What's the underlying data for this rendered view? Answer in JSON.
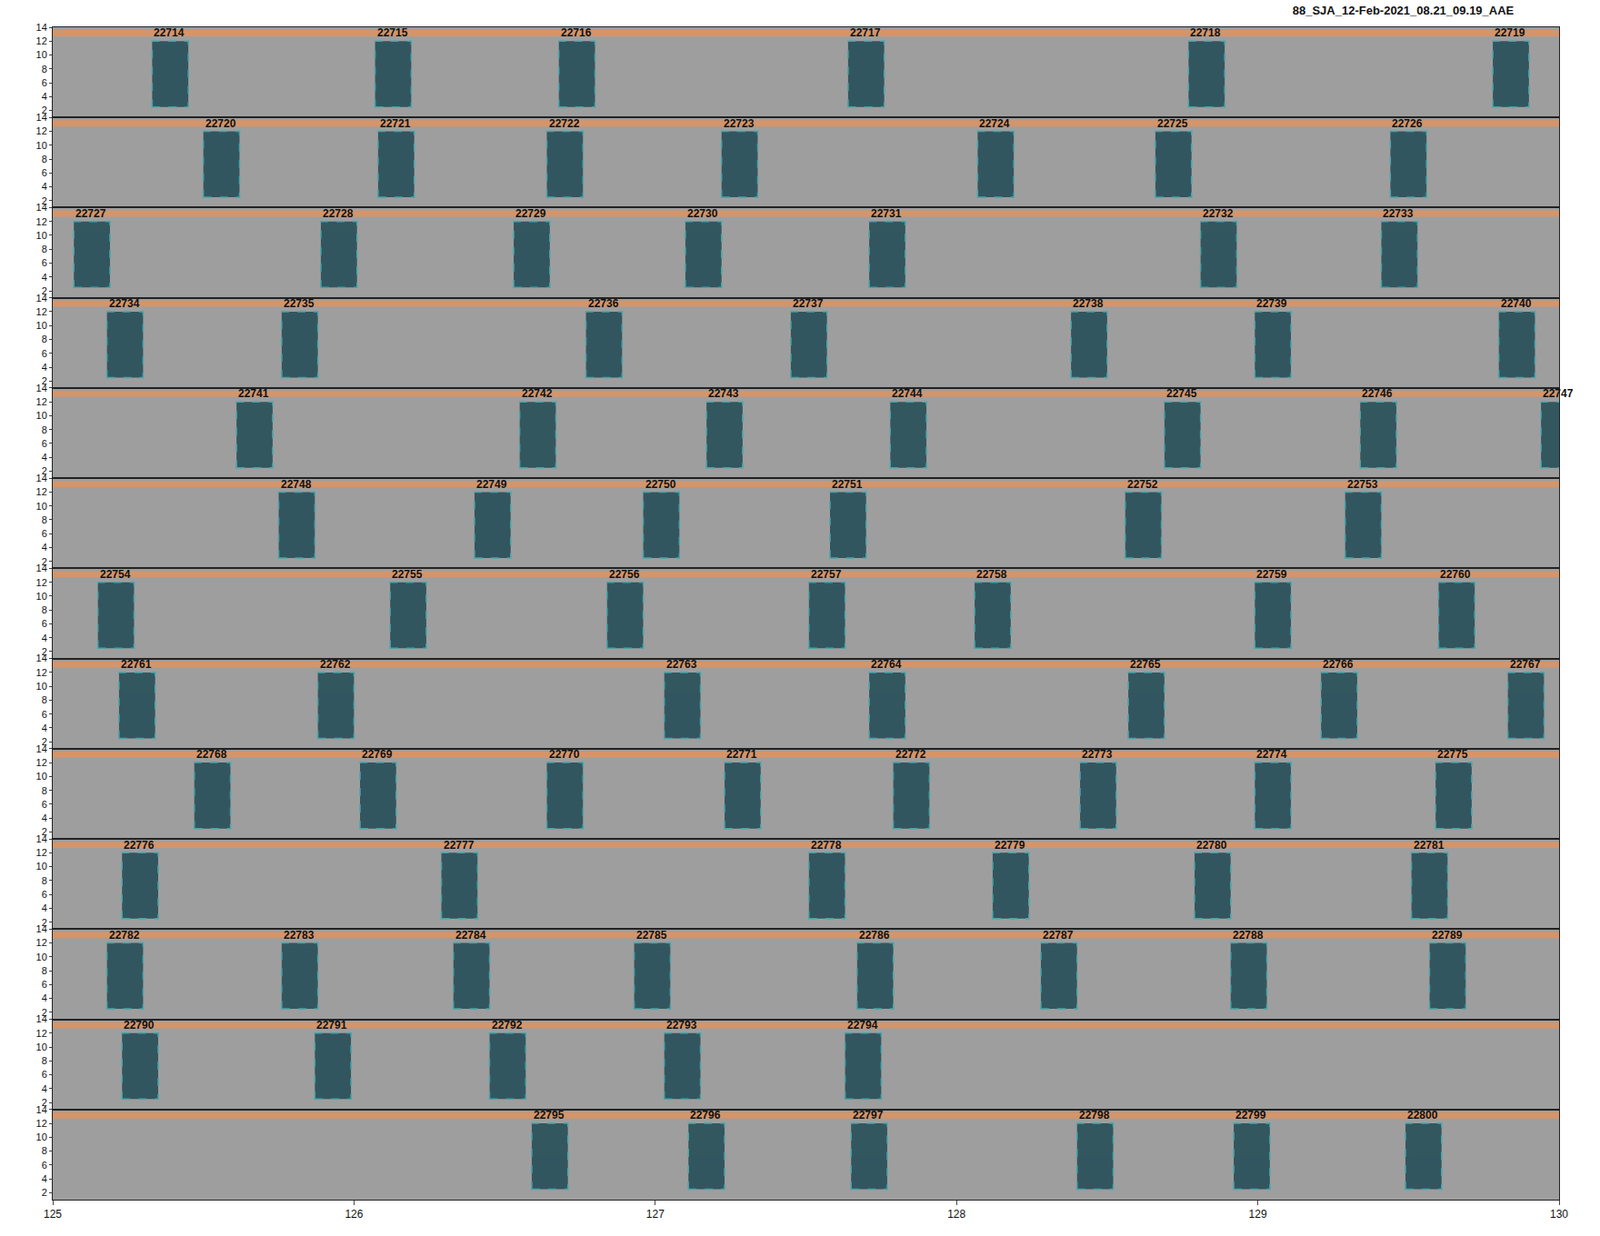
{
  "chart_data": {
    "type": "spectrogram",
    "title": "88_SJA_12-Feb-2021_08.21_09.19_AAE",
    "xlim": [
      125,
      130
    ],
    "xticks": [
      125,
      126,
      127,
      128,
      129,
      130
    ],
    "ylim": [
      1,
      14
    ],
    "yticks": [
      2,
      4,
      6,
      8,
      10,
      12,
      14
    ],
    "box_duration": 0.12,
    "box_frequency": [
      2.5,
      12
    ],
    "band": [
      12.7,
      13.6
    ],
    "color": "#0f3f4a",
    "rows": [
      {
        "detections": [
          {
            "label": "22714",
            "start": 125.33
          },
          {
            "label": "22715",
            "start": 126.07
          },
          {
            "label": "22716",
            "start": 126.68
          },
          {
            "label": "22717",
            "start": 127.64
          },
          {
            "label": "22718",
            "start": 128.77
          },
          {
            "label": "22719",
            "start": 129.78
          }
        ]
      },
      {
        "detections": [
          {
            "label": "22720",
            "start": 125.5
          },
          {
            "label": "22721",
            "start": 126.08
          },
          {
            "label": "22722",
            "start": 126.64
          },
          {
            "label": "22723",
            "start": 127.22
          },
          {
            "label": "22724",
            "start": 128.07
          },
          {
            "label": "22725",
            "start": 128.66
          },
          {
            "label": "22726",
            "start": 129.44
          }
        ]
      },
      {
        "detections": [
          {
            "label": "22727",
            "start": 125.07
          },
          {
            "label": "22728",
            "start": 125.89
          },
          {
            "label": "22729",
            "start": 126.53
          },
          {
            "label": "22730",
            "start": 127.1
          },
          {
            "label": "22731",
            "start": 127.71
          },
          {
            "label": "22732",
            "start": 128.81
          },
          {
            "label": "22733",
            "start": 129.41
          }
        ]
      },
      {
        "detections": [
          {
            "label": "22734",
            "start": 125.18
          },
          {
            "label": "22735",
            "start": 125.76
          },
          {
            "label": "22736",
            "start": 126.77
          },
          {
            "label": "22737",
            "start": 127.45
          },
          {
            "label": "22738",
            "start": 128.38
          },
          {
            "label": "22739",
            "start": 128.99
          },
          {
            "label": "22740",
            "start": 129.8
          }
        ]
      },
      {
        "detections": [
          {
            "label": "22741",
            "start": 125.61
          },
          {
            "label": "22742",
            "start": 126.55
          },
          {
            "label": "22743",
            "start": 127.17
          },
          {
            "label": "22744",
            "start": 127.78
          },
          {
            "label": "22745",
            "start": 128.69
          },
          {
            "label": "22746",
            "start": 129.34
          },
          {
            "label": "22747",
            "start": 129.94
          }
        ]
      },
      {
        "detections": [
          {
            "label": "22748",
            "start": 125.75
          },
          {
            "label": "22749",
            "start": 126.4
          },
          {
            "label": "22750",
            "start": 126.96
          },
          {
            "label": "22751",
            "start": 127.58
          },
          {
            "label": "22752",
            "start": 128.56
          },
          {
            "label": "22753",
            "start": 129.29
          }
        ]
      },
      {
        "detections": [
          {
            "label": "22754",
            "start": 125.15
          },
          {
            "label": "22755",
            "start": 126.12
          },
          {
            "label": "22756",
            "start": 126.84
          },
          {
            "label": "22757",
            "start": 127.51
          },
          {
            "label": "22758",
            "start": 128.06
          },
          {
            "label": "22759",
            "start": 128.99
          },
          {
            "label": "22760",
            "start": 129.6
          }
        ]
      },
      {
        "detections": [
          {
            "label": "22761",
            "start": 125.22
          },
          {
            "label": "22762",
            "start": 125.88
          },
          {
            "label": "22763",
            "start": 127.03
          },
          {
            "label": "22764",
            "start": 127.71
          },
          {
            "label": "22765",
            "start": 128.57
          },
          {
            "label": "22766",
            "start": 129.21
          },
          {
            "label": "22767",
            "start": 129.83
          }
        ]
      },
      {
        "detections": [
          {
            "label": "22768",
            "start": 125.47
          },
          {
            "label": "22769",
            "start": 126.02
          },
          {
            "label": "22770",
            "start": 126.64
          },
          {
            "label": "22771",
            "start": 127.23
          },
          {
            "label": "22772",
            "start": 127.79
          },
          {
            "label": "22773",
            "start": 128.41
          },
          {
            "label": "22774",
            "start": 128.99
          },
          {
            "label": "22775",
            "start": 129.59
          }
        ]
      },
      {
        "detections": [
          {
            "label": "22776",
            "start": 125.23
          },
          {
            "label": "22777",
            "start": 126.29
          },
          {
            "label": "22778",
            "start": 127.51
          },
          {
            "label": "22779",
            "start": 128.12
          },
          {
            "label": "22780",
            "start": 128.79
          },
          {
            "label": "22781",
            "start": 129.51
          }
        ]
      },
      {
        "detections": [
          {
            "label": "22782",
            "start": 125.18
          },
          {
            "label": "22783",
            "start": 125.76
          },
          {
            "label": "22784",
            "start": 126.33
          },
          {
            "label": "22785",
            "start": 126.93
          },
          {
            "label": "22786",
            "start": 127.67
          },
          {
            "label": "22787",
            "start": 128.28
          },
          {
            "label": "22788",
            "start": 128.91
          },
          {
            "label": "22789",
            "start": 129.57
          }
        ]
      },
      {
        "detections": [
          {
            "label": "22790",
            "start": 125.23
          },
          {
            "label": "22791",
            "start": 125.87
          },
          {
            "label": "22792",
            "start": 126.45
          },
          {
            "label": "22793",
            "start": 127.03
          },
          {
            "label": "22794",
            "start": 127.63
          }
        ]
      },
      {
        "detections": [
          {
            "label": "22795",
            "start": 126.59
          },
          {
            "label": "22796",
            "start": 127.11
          },
          {
            "label": "22797",
            "start": 127.65
          },
          {
            "label": "22798",
            "start": 128.4
          },
          {
            "label": "22799",
            "start": 128.92
          },
          {
            "label": "22800",
            "start": 129.49
          }
        ]
      }
    ]
  }
}
